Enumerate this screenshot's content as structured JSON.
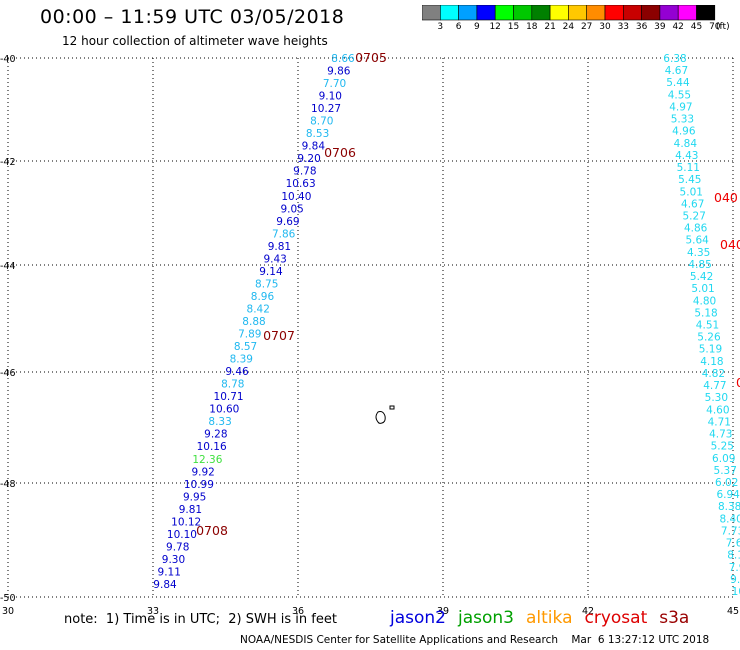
{
  "header": {
    "title": "00:00 – 11:59 UTC 03/05/2018",
    "subtitle": "12 hour collection of altimeter wave heights"
  },
  "colorbar": {
    "unit": "(ft)",
    "labels": [
      "3",
      "6",
      "9",
      "12",
      "15",
      "18",
      "21",
      "24",
      "27",
      "30",
      "33",
      "36",
      "39",
      "42",
      "45",
      "70"
    ],
    "colors": [
      "#808080",
      "#00ffff",
      "#00a0ff",
      "#0000ff",
      "#00ff00",
      "#00c800",
      "#008000",
      "#ffff00",
      "#ffc800",
      "#ff8c00",
      "#ff0000",
      "#c80000",
      "#8b0000",
      "#9400d3",
      "#ff00ff",
      "#000000"
    ]
  },
  "axes": {
    "lat_labels": [
      "-40",
      "-42",
      "-44",
      "-46",
      "-48",
      "-50"
    ],
    "lon_labels": [
      "30",
      "33",
      "36",
      "39",
      "42",
      "45"
    ]
  },
  "track_left": {
    "values": [
      {
        "v": "8.66",
        "c": "#20b8f0"
      },
      {
        "v": "9.86",
        "c": "#0000cc"
      },
      {
        "v": "7.70",
        "c": "#20b8f0"
      },
      {
        "v": "9.10",
        "c": "#0000cc"
      },
      {
        "v": "10.27",
        "c": "#0000cc"
      },
      {
        "v": "8.70",
        "c": "#20b8f0"
      },
      {
        "v": "8.53",
        "c": "#20b8f0"
      },
      {
        "v": "9.84",
        "c": "#0000cc"
      },
      {
        "v": "9.20",
        "c": "#0000cc"
      },
      {
        "v": "9.78",
        "c": "#0000cc"
      },
      {
        "v": "10.63",
        "c": "#0000cc"
      },
      {
        "v": "10.40",
        "c": "#0000cc"
      },
      {
        "v": "9.05",
        "c": "#0000cc"
      },
      {
        "v": "9.69",
        "c": "#0000cc"
      },
      {
        "v": "7.86",
        "c": "#20b8f0"
      },
      {
        "v": "9.81",
        "c": "#0000cc"
      },
      {
        "v": "9.43",
        "c": "#0000cc"
      },
      {
        "v": "9.14",
        "c": "#0000cc"
      },
      {
        "v": "8.75",
        "c": "#20b8f0"
      },
      {
        "v": "8.96",
        "c": "#20b8f0"
      },
      {
        "v": "8.42",
        "c": "#20b8f0"
      },
      {
        "v": "8.88",
        "c": "#20b8f0"
      },
      {
        "v": "7.89",
        "c": "#20b8f0"
      },
      {
        "v": "8.57",
        "c": "#20b8f0"
      },
      {
        "v": "8.39",
        "c": "#20b8f0"
      },
      {
        "v": "9.46",
        "c": "#0000cc"
      },
      {
        "v": "8.78",
        "c": "#20b8f0"
      },
      {
        "v": "10.71",
        "c": "#0000cc"
      },
      {
        "v": "10.60",
        "c": "#0000cc"
      },
      {
        "v": "8.33",
        "c": "#20b8f0"
      },
      {
        "v": "9.28",
        "c": "#0000cc"
      },
      {
        "v": "10.16",
        "c": "#0000cc"
      },
      {
        "v": "12.36",
        "c": "#40e040"
      },
      {
        "v": "9.92",
        "c": "#0000cc"
      },
      {
        "v": "10.99",
        "c": "#0000cc"
      },
      {
        "v": "9.95",
        "c": "#0000cc"
      },
      {
        "v": "9.81",
        "c": "#0000cc"
      },
      {
        "v": "10.12",
        "c": "#0000cc"
      },
      {
        "v": "10.10",
        "c": "#0000cc"
      },
      {
        "v": "9.78",
        "c": "#0000cc"
      },
      {
        "v": "9.30",
        "c": "#0000cc"
      },
      {
        "v": "9.11",
        "c": "#0000cc"
      },
      {
        "v": "9.84",
        "c": "#0000cc"
      }
    ],
    "times": [
      "0705",
      "0706",
      "0707",
      "0708"
    ]
  },
  "track_right": {
    "values": [
      "6.38",
      "4.67",
      "5.44",
      "4.55",
      "4.97",
      "5.33",
      "4.96",
      "4.84",
      "4.43",
      "5.11",
      "5.45",
      "5.01",
      "4.67",
      "5.27",
      "4.86",
      "5.64",
      "4.35",
      "4.85",
      "5.42",
      "5.01",
      "4.80",
      "5.18",
      "4.51",
      "5.26",
      "5.19",
      "4.18",
      "4.82",
      "4.77",
      "5.30",
      "4.60",
      "4.71",
      "4.73",
      "5.25",
      "6.09",
      "5.37",
      "6.02",
      "6.94",
      "8.38",
      "8.40",
      "7.73",
      "7.6",
      "8.1",
      "7.9",
      "9.2",
      "10."
    ],
    "times": [
      "040",
      "040",
      "0"
    ]
  },
  "legend": {
    "note": "note:  1) Time is in UTC;  2) SWH is in feet",
    "satellites": [
      {
        "name": "jason2",
        "color": "#0000dd"
      },
      {
        "name": "jason3",
        "color": "#00a000"
      },
      {
        "name": "altika",
        "color": "#ff9900"
      },
      {
        "name": "cryosat",
        "color": "#dd0000"
      },
      {
        "name": "s3a",
        "color": "#990000"
      }
    ]
  },
  "footer": "NOAA/NESDIS Center for Satellite Applications and Research    Mar  6 13:27:12 UTC 2018"
}
